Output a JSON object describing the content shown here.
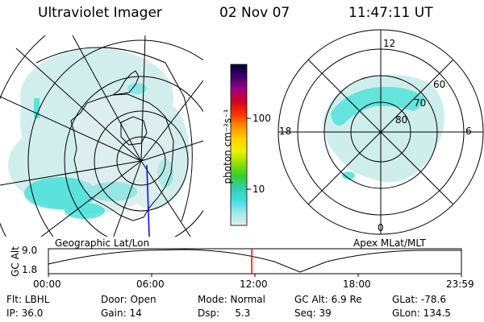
{
  "header": {
    "title": "Ultraviolet Imager",
    "date": "02 Nov 07",
    "time": "11:47:11 UT"
  },
  "colors": {
    "aurora_cyan": "#40e0d8",
    "aurora_light": "#b8ece8",
    "time_marker": "#ff0000",
    "track_blue": "#0000ff"
  },
  "colorbar": {
    "title": "photon cm⁻²s⁻¹",
    "tick_100": "100",
    "tick_10": "10",
    "stops": [
      "#000030",
      "#400070",
      "#a00080",
      "#d00020",
      "#ff3000",
      "#ff9000",
      "#ffd000",
      "#f0f000",
      "#90e000",
      "#30d030",
      "#30d0b0",
      "#40e0e0",
      "#a0e8e8",
      "#e0f0f0"
    ]
  },
  "geo_panel": {
    "caption": "Geographic Lat/Lon"
  },
  "polar_panel": {
    "caption": "Apex MLat/MLT",
    "mlt_top": "12",
    "mlt_left": "18",
    "mlt_right": "6",
    "mlt_bottom": "0",
    "lat_60": "60",
    "lat_70": "70",
    "lat_80": "80"
  },
  "alt_plot": {
    "ylabel": "GC Alt",
    "ytick_top": "9.0",
    "ytick_bottom": "1.8",
    "xticks": [
      "00:00",
      "06:00",
      "12:00",
      "18:00",
      "23:59"
    ],
    "current_time_fraction": 0.4924
  },
  "info": {
    "flt": "Flt: LBHL",
    "ip": "IP: 36.0",
    "door": "Door: Open",
    "gain": "Gain: 14",
    "mode": "Mode: Normal",
    "dsp": "Dsp:     5.3",
    "gcalt": "GC Alt: 6.9 Re",
    "seq": "Seq: 39",
    "glat": "GLat: -78.6",
    "glon": "GLon: 134.5"
  }
}
